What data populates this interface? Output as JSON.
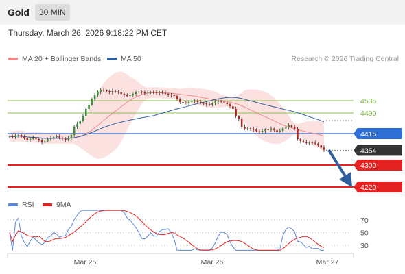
{
  "header": {
    "title": "Gold",
    "timeframe": "30 MIN"
  },
  "datetime": "Thursday, March 26, 2026 9:18:22 PM CET",
  "legend": {
    "ma20": {
      "label": "MA 20 + Bollinger Bands",
      "color": "#f08a8a"
    },
    "ma50": {
      "label": "MA 50",
      "color": "#2f5f9e"
    },
    "credit": "Research © 2026 Trading Central"
  },
  "levels": [
    {
      "value": 4535,
      "label": "4535",
      "style": "green-line",
      "color": "#8cc34a"
    },
    {
      "value": 4490,
      "label": "4490",
      "style": "green-line",
      "color": "#8cc34a"
    },
    {
      "value": 4415,
      "label": "4415",
      "style": "blue-tag",
      "color": "#2f6fd6"
    },
    {
      "value": 4354,
      "label": "4354",
      "style": "current-price",
      "color": "#333333"
    },
    {
      "value": 4300,
      "label": "4300",
      "style": "red-tag",
      "color": "#e52222"
    },
    {
      "value": 4220,
      "label": "4220",
      "style": "red-tag",
      "color": "#e52222"
    }
  ],
  "rsi_panel": {
    "legend": [
      {
        "label": "RSI",
        "color": "#5b86d6"
      },
      {
        "label": "9MA",
        "color": "#e52222"
      }
    ],
    "levels": [
      "70",
      "50",
      "30"
    ]
  },
  "x_axis": [
    "Mar 25",
    "Mar 26",
    "Mar 27"
  ],
  "chart_data": {
    "type": "candlestick",
    "title": "Gold",
    "timeframe": "30 MIN",
    "series": [
      {
        "name": "MA 20 + Bollinger Bands"
      },
      {
        "name": "MA 50"
      }
    ],
    "approx_close": [
      4405,
      4402,
      4408,
      4410,
      4403,
      4398,
      4392,
      4396,
      4400,
      4395,
      4390,
      4385,
      4388,
      4395,
      4398,
      4402,
      4405,
      4400,
      4396,
      4392,
      4398,
      4410,
      4440,
      4450,
      4462,
      4480,
      4505,
      4520,
      4540,
      4555,
      4568,
      4575,
      4572,
      4570,
      4566,
      4570,
      4568,
      4565,
      4560,
      4556,
      4552,
      4555,
      4560,
      4565,
      4568,
      4566,
      4562,
      4564,
      4566,
      4565,
      4563,
      4566,
      4564,
      4560,
      4557,
      4555,
      4552,
      4540,
      4530,
      4528,
      4525,
      4531,
      4533,
      4536,
      4530,
      4527,
      4525,
      4522,
      4520,
      4525,
      4531,
      4534,
      4531,
      4528,
      4522,
      4515,
      4505,
      4478,
      4468,
      4440,
      4432,
      4434,
      4432,
      4430,
      4424,
      4420,
      4425,
      4430,
      4428,
      4433,
      4428,
      4422,
      4425,
      4434,
      4438,
      4445,
      4440,
      4432,
      4395,
      4388,
      4384,
      4380,
      4382,
      4381,
      4378,
      4372,
      4364,
      4356
    ],
    "rsi_levels": [
      70,
      50,
      30
    ]
  }
}
